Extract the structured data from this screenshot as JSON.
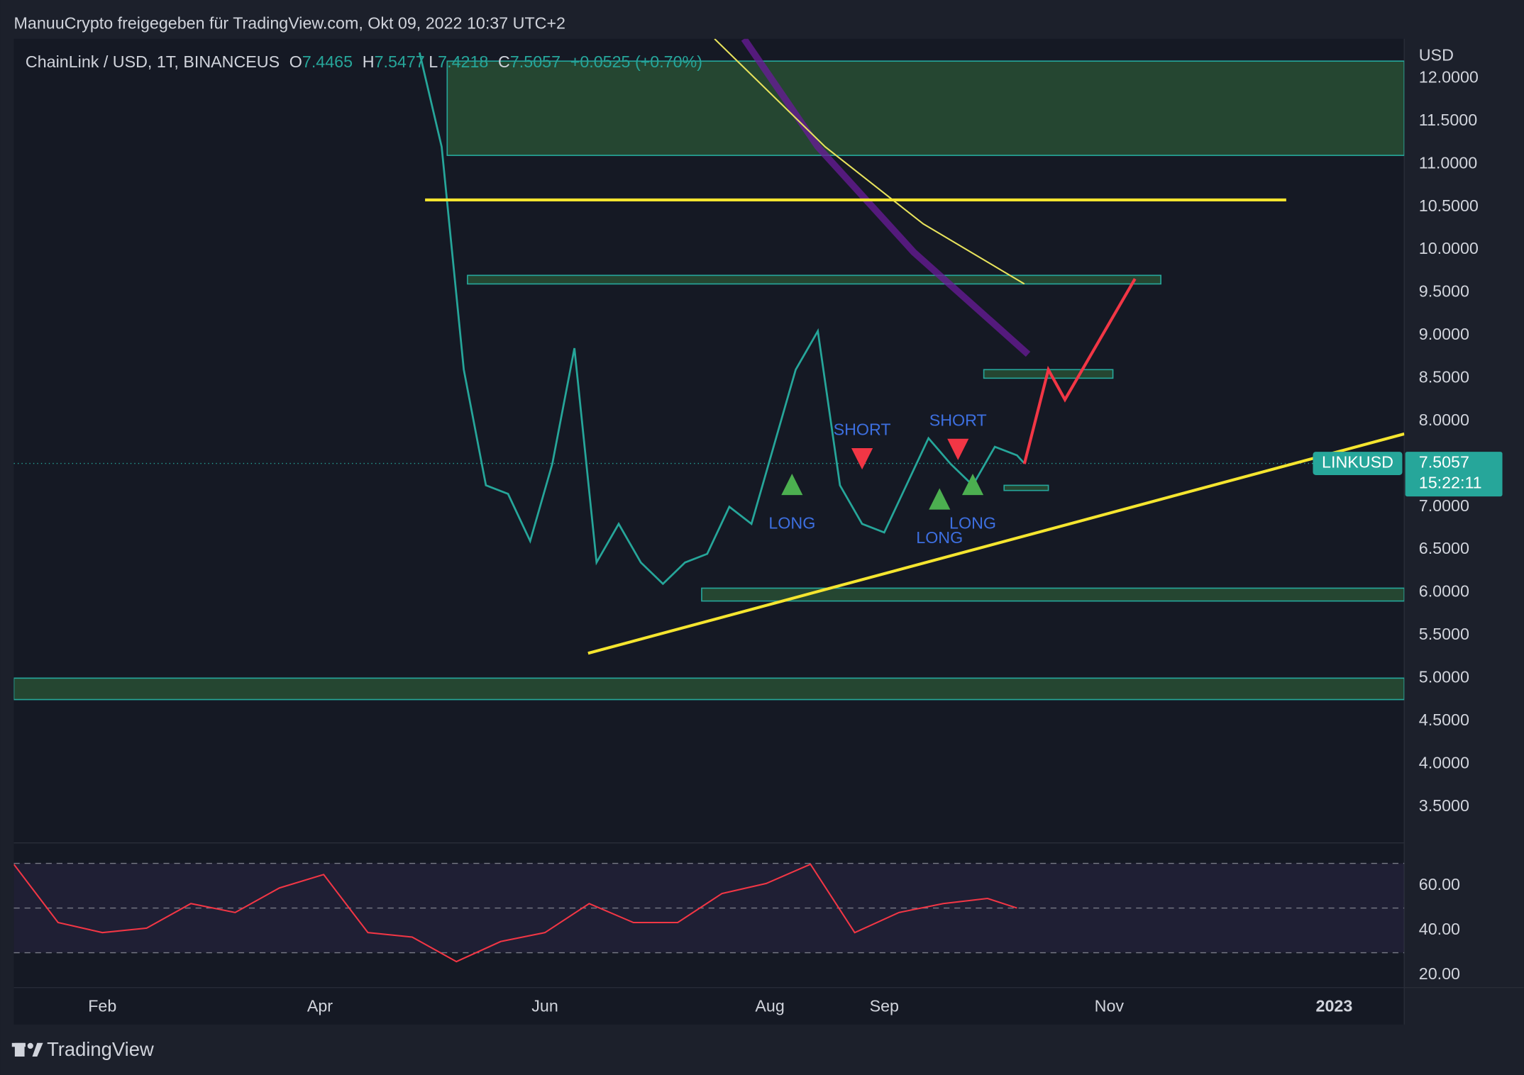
{
  "header": {
    "shared_by": "ManuuCrypto freigegeben für TradingView.com, Okt 09, 2022 10:37 UTC+2",
    "symbol": "ChainLink / USD, 1T, BINANCEUS",
    "open_label": "O",
    "open": "7.4465",
    "high_label": "H",
    "high": "7.5477",
    "low_label": "L",
    "low": "7.4218",
    "close_label": "C",
    "change": "+0.0525 (+0.70%)"
  },
  "price_tag": {
    "symbol": "LINKUSD",
    "countdown": "15:22:11"
  },
  "footer": {
    "brand": "TradingView"
  },
  "chart_data": [
    {
      "type": "line",
      "y_label": "USD",
      "color": "#26a69a",
      "last": 7.5057,
      "grid": false,
      "x": [
        110,
        116,
        122,
        128,
        134,
        140,
        146,
        152,
        158,
        164,
        170,
        176,
        182,
        188,
        194,
        200,
        206,
        212,
        218,
        224,
        230,
        236,
        242,
        248,
        254,
        260,
        266,
        272,
        274
      ],
      "values": [
        12.3,
        11.2,
        8.6,
        7.25,
        7.15,
        6.6,
        7.5,
        8.85,
        6.35,
        6.8,
        6.35,
        6.1,
        6.35,
        6.45,
        7.0,
        6.8,
        7.7,
        8.6,
        9.05,
        7.25,
        6.8,
        6.7,
        7.25,
        7.8,
        7.5,
        7.25,
        7.7,
        7.6,
        7.5057
      ],
      "xlim": [
        0,
        377
      ],
      "xticks": [
        {
          "value": 24,
          "label": "Feb"
        },
        {
          "value": 83,
          "label": "Apr"
        },
        {
          "value": 144,
          "label": "Jun"
        },
        {
          "value": 205,
          "label": "Aug"
        },
        {
          "value": 236,
          "label": "Sep"
        },
        {
          "value": 297,
          "label": "Nov"
        },
        {
          "value": 358,
          "label": "2023"
        }
      ],
      "ylim": [
        3.1,
        12.46
      ],
      "yticks": [
        {
          "value": 3.5,
          "label": "3.5000"
        },
        {
          "value": 4,
          "label": "4.0000"
        },
        {
          "value": 4.5,
          "label": "4.5000"
        },
        {
          "value": 5,
          "label": "5.0000"
        },
        {
          "value": 5.5,
          "label": "5.5000"
        },
        {
          "value": 6,
          "label": "6.0000"
        },
        {
          "value": 6.5,
          "label": "6.5000"
        },
        {
          "value": 7,
          "label": "7.0000"
        },
        {
          "value": 8,
          "label": "8.0000"
        },
        {
          "value": 8.5,
          "label": "8.5000"
        },
        {
          "value": 9,
          "label": "9.0000"
        },
        {
          "value": 9.5,
          "label": "9.5000"
        },
        {
          "value": 10,
          "label": "10.0000"
        },
        {
          "value": 10.5,
          "label": "10.5000"
        },
        {
          "value": 11,
          "label": "11.0000"
        },
        {
          "value": 11.5,
          "label": "11.5000"
        },
        {
          "value": 12,
          "label": "12.0000"
        }
      ],
      "overlays": [
        {
          "color": "#6a1b9a",
          "x": [
            198,
            218,
            244,
            275
          ],
          "values": [
            12.46,
            11.2,
            9.97,
            8.78
          ]
        },
        {
          "color": "#e8e35c",
          "x": [
            190,
            220,
            246.6,
            274
          ],
          "values": [
            12.46,
            11.2,
            10.3,
            9.6
          ]
        }
      ],
      "zones": [
        {
          "from": 117.5,
          "to": 377,
          "bottom": 11.1,
          "top": 12.2
        },
        {
          "from": 123,
          "to": 311,
          "bottom": 9.6,
          "top": 9.7
        },
        {
          "from": 263,
          "to": 298,
          "bottom": 8.5,
          "top": 8.6
        },
        {
          "from": 268.5,
          "to": 280.5,
          "bottom": 7.19,
          "top": 7.25
        },
        {
          "from": 186.5,
          "to": 377,
          "bottom": 5.9,
          "top": 6.05
        },
        {
          "from": 0,
          "to": 377,
          "bottom": 4.75,
          "top": 5.0
        }
      ],
      "lines": [
        {
          "color": "#f5e52f",
          "x": [
            111.5,
            345
          ],
          "values": [
            10.58,
            10.58
          ]
        },
        {
          "color": "#f5e52f",
          "x": [
            155.7,
            377
          ],
          "values": [
            5.29,
            7.85
          ]
        },
        {
          "color": "#f23645",
          "x": [
            274,
            280.5,
            285,
            304
          ],
          "values": [
            7.5,
            8.6,
            8.25,
            9.66
          ]
        }
      ],
      "signals": [
        {
          "label": "LONG",
          "x": 211,
          "value": 7.25,
          "direction": "up"
        },
        {
          "label": "SHORT",
          "x": 230,
          "value": 7.57,
          "direction": "down"
        },
        {
          "label": "LONG",
          "x": 251,
          "value": 7.08,
          "direction": "up"
        },
        {
          "label": "SHORT",
          "x": 256,
          "value": 7.68,
          "direction": "down"
        },
        {
          "label": "LONG",
          "x": 260,
          "value": 7.25,
          "direction": "up"
        }
      ]
    },
    {
      "type": "line",
      "color": "#f23645",
      "x": [
        0,
        12,
        24,
        36,
        48,
        60,
        72,
        84,
        96,
        108,
        120,
        132,
        144,
        156,
        168,
        180,
        192,
        204,
        216,
        228,
        240,
        252,
        264,
        272
      ],
      "values": [
        69.6,
        43.5,
        39,
        41,
        52,
        48,
        59,
        65,
        39,
        37,
        26,
        35,
        39,
        52,
        43.5,
        43.5,
        56.5,
        61,
        69.6,
        39,
        48,
        52,
        54.3,
        50
      ],
      "ylim": [
        14.8,
        78.3
      ],
      "yticks": [
        {
          "value": 20,
          "label": "20.00"
        },
        {
          "value": 40,
          "label": "40.00"
        },
        {
          "value": 60,
          "label": "60.00"
        }
      ],
      "levels": [
        30,
        50,
        70
      ]
    }
  ]
}
